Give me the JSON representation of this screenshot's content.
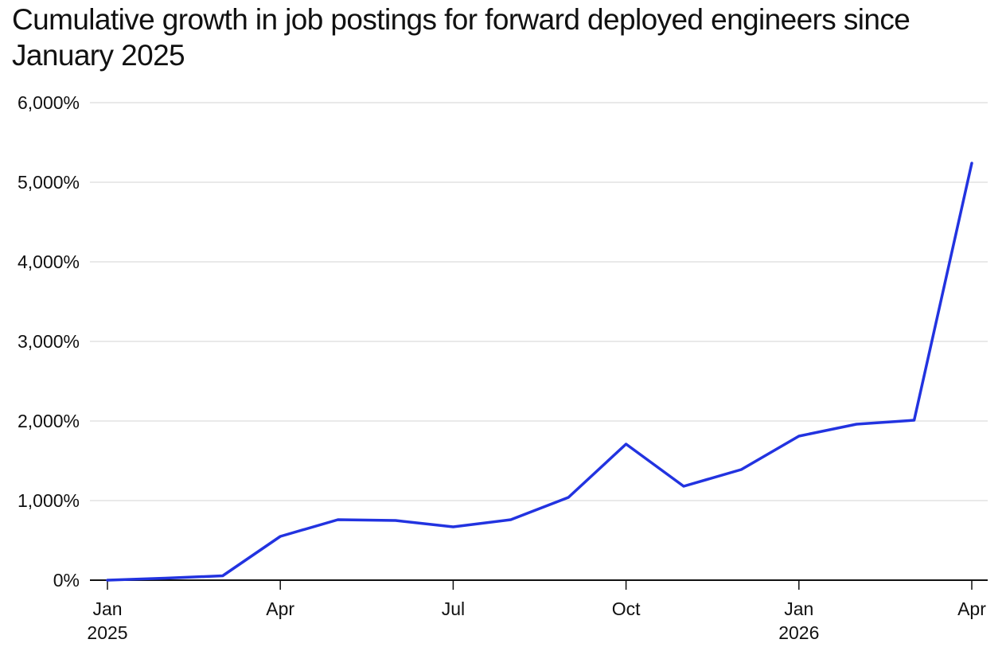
{
  "chart_data": {
    "type": "line",
    "title": "Cumulative growth in job postings for forward deployed engineers since January 2025",
    "xlabel": "",
    "ylabel": "",
    "x": [
      "2025-01",
      "2025-02",
      "2025-03",
      "2025-04",
      "2025-05",
      "2025-06",
      "2025-07",
      "2025-08",
      "2025-09",
      "2025-10",
      "2025-11",
      "2025-12",
      "2026-01",
      "2026-02",
      "2026-03",
      "2026-04"
    ],
    "series": [
      {
        "values": [
          0,
          25,
          55,
          550,
          760,
          750,
          670,
          760,
          1040,
          1710,
          1180,
          1390,
          1810,
          1960,
          2010,
          5240
        ]
      }
    ],
    "ylim": [
      0,
      6000
    ],
    "yticks": [
      0,
      1000,
      2000,
      3000,
      4000,
      5000,
      6000
    ],
    "ytick_labels": [
      "0%",
      "1,000%",
      "2,000%",
      "3,000%",
      "4,000%",
      "5,000%",
      "6,000%"
    ],
    "xticks": [
      {
        "x": "2025-01",
        "label": "Jan",
        "sublabel": "2025"
      },
      {
        "x": "2025-04",
        "label": "Apr",
        "sublabel": ""
      },
      {
        "x": "2025-07",
        "label": "Jul",
        "sublabel": ""
      },
      {
        "x": "2025-10",
        "label": "Oct",
        "sublabel": ""
      },
      {
        "x": "2026-01",
        "label": "Jan",
        "sublabel": "2026"
      },
      {
        "x": "2026-04",
        "label": "Apr",
        "sublabel": ""
      }
    ],
    "grid": true,
    "line_color": "#2233e0",
    "grid_color": "#e2e2e2",
    "axis_color": "#111111"
  }
}
